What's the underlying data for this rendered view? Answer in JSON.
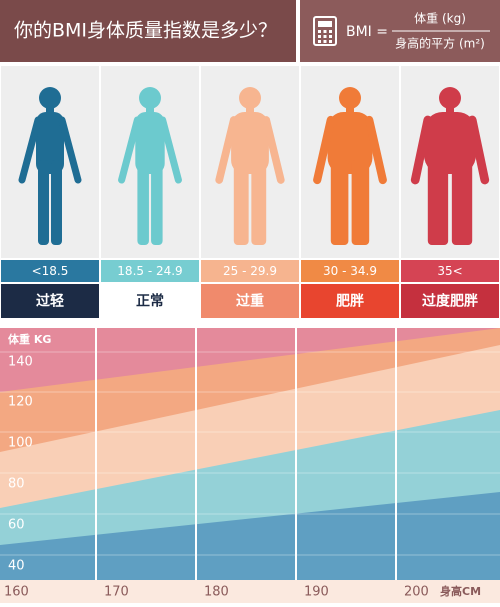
{
  "header": {
    "title": "你的BMI身体质量指数是多少？",
    "formula": {
      "lhs": "BMI =",
      "numerator": "体重 (kg)",
      "denominator": "身高的平方 (m²)"
    }
  },
  "categories": [
    {
      "range": "<18.5",
      "label": "过轻"
    },
    {
      "range": "18.5 - 24.9",
      "label": "正常"
    },
    {
      "range": "25 - 29.9",
      "label": "过重"
    },
    {
      "range": "30 - 34.9",
      "label": "肥胖"
    },
    {
      "range": "35<",
      "label": "过度肥胖"
    }
  ],
  "chart": {
    "y_label": "体重 KG",
    "y_ticks": [
      "140",
      "120",
      "100",
      "80",
      "60",
      "40"
    ],
    "x_ticks": [
      "160",
      "170",
      "180",
      "190",
      "200"
    ],
    "x_label": "身高CM"
  }
}
